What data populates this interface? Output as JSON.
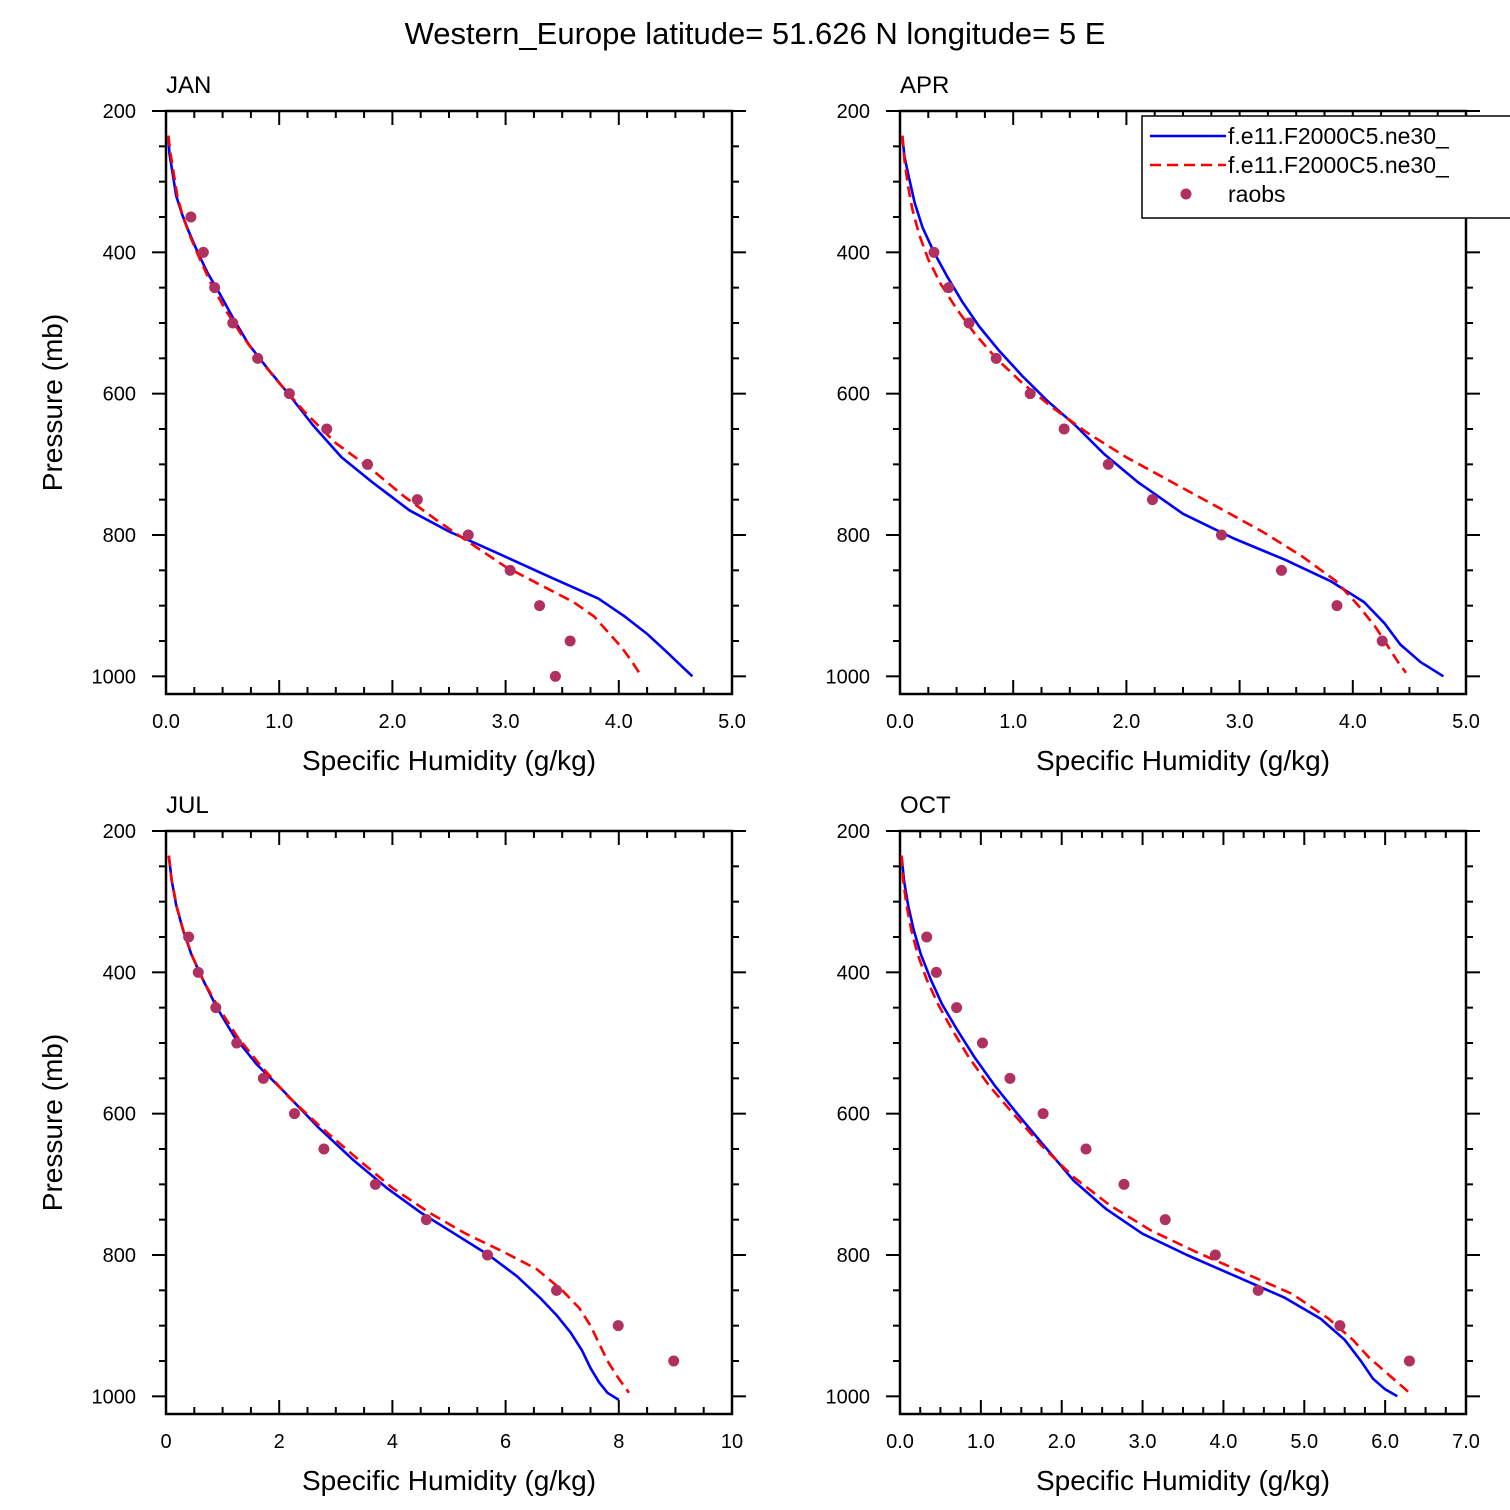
{
  "title": "Western_Europe  latitude= 51.626 N longitude= 5 E",
  "colors": {
    "model_a": "#0000ff",
    "model_b": "#ff0000",
    "raobs": "#b03060"
  },
  "legend": {
    "placement": "top-right of APR panel",
    "entries": [
      {
        "label": "f.e11.F2000C5.ne30_",
        "style": "solid",
        "color": "#0000ff"
      },
      {
        "label": "f.e11.F2000C5.ne30_",
        "style": "dashed",
        "color": "#ff0000"
      },
      {
        "label": "raobs",
        "style": "marker",
        "color": "#b03060"
      }
    ]
  },
  "chart_data": [
    {
      "type": "line",
      "title": "JAN",
      "xlabel": "Specific Humidity (g/kg)",
      "ylabel": "Pressure (mb)",
      "xlim": [
        0,
        5
      ],
      "ylim": [
        200,
        1025
      ],
      "y_inverted": true,
      "xticks": [
        0,
        1,
        2,
        3,
        4,
        5
      ],
      "xticklabels": [
        "0.0",
        "1.0",
        "2.0",
        "3.0",
        "4.0",
        "5.0"
      ],
      "yticks": [
        200,
        400,
        600,
        800,
        1000
      ],
      "yticklabels": [
        "200",
        "400",
        "600",
        "800",
        "1000"
      ],
      "series": [
        {
          "style": "solid",
          "color": "#0000ff",
          "x": [
            0.02,
            0.03,
            0.06,
            0.09,
            0.14,
            0.2,
            0.28,
            0.37,
            0.48,
            0.6,
            0.73,
            0.9,
            1.08,
            1.3,
            1.55,
            1.82,
            2.15,
            2.5,
            2.92,
            3.4,
            3.82,
            4.05,
            4.25,
            4.42,
            4.55,
            4.65
          ],
          "y": [
            235,
            260,
            290,
            320,
            345,
            370,
            400,
            430,
            460,
            495,
            530,
            565,
            600,
            645,
            690,
            725,
            765,
            795,
            825,
            860,
            890,
            915,
            940,
            965,
            985,
            1000
          ]
        },
        {
          "style": "dashed",
          "color": "#ff0000",
          "x": [
            0.02,
            0.04,
            0.07,
            0.1,
            0.15,
            0.22,
            0.3,
            0.4,
            0.52,
            0.66,
            0.82,
            1.0,
            1.22,
            1.5,
            1.8,
            2.1,
            2.4,
            2.72,
            3.0,
            3.3,
            3.6,
            3.78,
            3.92,
            4.03,
            4.12,
            4.18
          ],
          "y": [
            235,
            260,
            290,
            320,
            350,
            380,
            410,
            445,
            480,
            515,
            550,
            585,
            625,
            670,
            705,
            745,
            780,
            815,
            845,
            870,
            895,
            915,
            940,
            960,
            980,
            995
          ]
        },
        {
          "style": "marker",
          "color": "#b03060",
          "x": [
            0.22,
            0.33,
            0.43,
            0.59,
            0.81,
            1.09,
            1.42,
            1.78,
            2.22,
            2.67,
            3.04,
            3.3,
            3.57,
            3.44
          ],
          "y": [
            350,
            400,
            450,
            500,
            550,
            600,
            650,
            700,
            750,
            800,
            850,
            900,
            950,
            1000
          ]
        }
      ]
    },
    {
      "type": "line",
      "title": "APR",
      "xlabel": "Specific Humidity (g/kg)",
      "ylabel": "",
      "xlim": [
        0,
        5
      ],
      "ylim": [
        200,
        1025
      ],
      "y_inverted": true,
      "xticks": [
        0,
        1,
        2,
        3,
        4,
        5
      ],
      "xticklabels": [
        "0.0",
        "1.0",
        "2.0",
        "3.0",
        "4.0",
        "5.0"
      ],
      "yticks": [
        200,
        400,
        600,
        800,
        1000
      ],
      "yticklabels": [
        "200",
        "400",
        "600",
        "800",
        "1000"
      ],
      "series": [
        {
          "style": "solid",
          "color": "#0000ff",
          "x": [
            0.02,
            0.04,
            0.08,
            0.13,
            0.2,
            0.3,
            0.42,
            0.55,
            0.7,
            0.88,
            1.08,
            1.3,
            1.55,
            1.8,
            2.1,
            2.5,
            2.95,
            3.4,
            3.8,
            4.1,
            4.28,
            4.42,
            4.6,
            4.8
          ],
          "y": [
            235,
            265,
            295,
            330,
            365,
            400,
            435,
            470,
            505,
            540,
            575,
            610,
            645,
            685,
            725,
            770,
            805,
            835,
            865,
            895,
            925,
            955,
            980,
            1000
          ]
        },
        {
          "style": "dashed",
          "color": "#ff0000",
          "x": [
            0.02,
            0.04,
            0.07,
            0.11,
            0.17,
            0.25,
            0.36,
            0.5,
            0.66,
            0.85,
            1.08,
            1.35,
            1.65,
            2.0,
            2.4,
            2.8,
            3.2,
            3.55,
            3.85,
            4.05,
            4.2,
            4.3,
            4.4,
            4.47
          ],
          "y": [
            235,
            270,
            305,
            340,
            375,
            410,
            445,
            480,
            515,
            550,
            585,
            620,
            655,
            690,
            725,
            760,
            795,
            830,
            865,
            900,
            930,
            955,
            980,
            995
          ]
        },
        {
          "style": "marker",
          "color": "#b03060",
          "x": [
            0.3,
            0.43,
            0.61,
            0.85,
            1.15,
            1.45,
            1.84,
            2.23,
            2.84,
            3.37,
            3.86,
            4.26
          ],
          "y": [
            400,
            450,
            500,
            550,
            600,
            650,
            700,
            750,
            800,
            850,
            900,
            950
          ]
        }
      ]
    },
    {
      "type": "line",
      "title": "JUL",
      "xlabel": "Specific Humidity (g/kg)",
      "ylabel": "Pressure (mb)",
      "xlim": [
        0,
        10
      ],
      "ylim": [
        200,
        1025
      ],
      "y_inverted": true,
      "xticks": [
        0,
        2,
        4,
        6,
        8,
        10
      ],
      "xticklabels": [
        "0",
        "2",
        "4",
        "6",
        "8",
        "10"
      ],
      "yticks": [
        200,
        400,
        600,
        800,
        1000
      ],
      "yticklabels": [
        "200",
        "400",
        "600",
        "800",
        "1000"
      ],
      "series": [
        {
          "style": "solid",
          "color": "#0000ff",
          "x": [
            0.05,
            0.1,
            0.18,
            0.3,
            0.45,
            0.65,
            0.9,
            1.2,
            1.6,
            2.1,
            2.7,
            3.3,
            3.9,
            4.5,
            5.1,
            5.7,
            6.2,
            6.6,
            6.9,
            7.15,
            7.35,
            7.5,
            7.65,
            7.8,
            8.0
          ],
          "y": [
            235,
            270,
            305,
            340,
            375,
            410,
            450,
            490,
            530,
            570,
            620,
            665,
            705,
            740,
            770,
            800,
            830,
            860,
            885,
            910,
            935,
            960,
            980,
            995,
            1005
          ]
        },
        {
          "style": "dashed",
          "color": "#ff0000",
          "x": [
            0.05,
            0.1,
            0.2,
            0.32,
            0.48,
            0.68,
            0.93,
            1.25,
            1.65,
            2.15,
            2.75,
            3.4,
            4.0,
            4.65,
            5.3,
            5.95,
            6.55,
            7.0,
            7.3,
            7.5,
            7.65,
            7.8,
            8.0,
            8.18
          ],
          "y": [
            235,
            270,
            310,
            345,
            380,
            415,
            450,
            490,
            530,
            575,
            620,
            665,
            705,
            740,
            770,
            795,
            820,
            850,
            875,
            900,
            925,
            950,
            975,
            995
          ]
        },
        {
          "style": "marker",
          "color": "#b03060",
          "x": [
            0.4,
            0.57,
            0.88,
            1.25,
            1.72,
            2.27,
            2.79,
            3.7,
            4.6,
            5.68,
            6.9,
            7.99,
            8.97
          ],
          "y": [
            350,
            400,
            450,
            500,
            550,
            600,
            650,
            700,
            750,
            800,
            850,
            900,
            950
          ]
        }
      ]
    },
    {
      "type": "line",
      "title": "OCT",
      "xlabel": "Specific Humidity (g/kg)",
      "ylabel": "",
      "xlim": [
        0,
        7
      ],
      "ylim": [
        200,
        1025
      ],
      "y_inverted": true,
      "xticks": [
        0,
        1,
        2,
        3,
        4,
        5,
        6,
        7
      ],
      "xticklabels": [
        "0.0",
        "1.0",
        "2.0",
        "3.0",
        "4.0",
        "5.0",
        "6.0",
        "7.0"
      ],
      "yticks": [
        200,
        400,
        600,
        800,
        1000
      ],
      "yticklabels": [
        "200",
        "400",
        "600",
        "800",
        "1000"
      ],
      "series": [
        {
          "style": "solid",
          "color": "#0000ff",
          "x": [
            0.02,
            0.05,
            0.1,
            0.17,
            0.26,
            0.38,
            0.52,
            0.7,
            0.92,
            1.17,
            1.45,
            1.78,
            2.15,
            2.55,
            3.0,
            3.55,
            4.15,
            4.75,
            5.2,
            5.5,
            5.7,
            5.85,
            6.0,
            6.15
          ],
          "y": [
            235,
            270,
            305,
            340,
            375,
            410,
            445,
            480,
            520,
            560,
            600,
            645,
            695,
            735,
            770,
            800,
            830,
            860,
            890,
            920,
            950,
            975,
            990,
            1000
          ]
        },
        {
          "style": "dashed",
          "color": "#ff0000",
          "x": [
            0.02,
            0.04,
            0.08,
            0.14,
            0.22,
            0.33,
            0.47,
            0.64,
            0.85,
            1.1,
            1.4,
            1.75,
            2.15,
            2.6,
            3.1,
            3.65,
            4.25,
            4.85,
            5.3,
            5.6,
            5.8,
            6.0,
            6.15,
            6.3
          ],
          "y": [
            235,
            270,
            305,
            340,
            375,
            410,
            445,
            480,
            520,
            560,
            600,
            645,
            690,
            730,
            765,
            795,
            825,
            855,
            890,
            920,
            945,
            965,
            980,
            995
          ]
        },
        {
          "style": "marker",
          "color": "#b03060",
          "x": [
            0.33,
            0.45,
            0.7,
            1.02,
            1.36,
            1.77,
            2.3,
            2.77,
            3.28,
            3.9,
            4.43,
            5.44,
            6.3
          ],
          "y": [
            350,
            400,
            450,
            500,
            550,
            600,
            650,
            700,
            750,
            800,
            850,
            900,
            950
          ]
        }
      ]
    }
  ]
}
